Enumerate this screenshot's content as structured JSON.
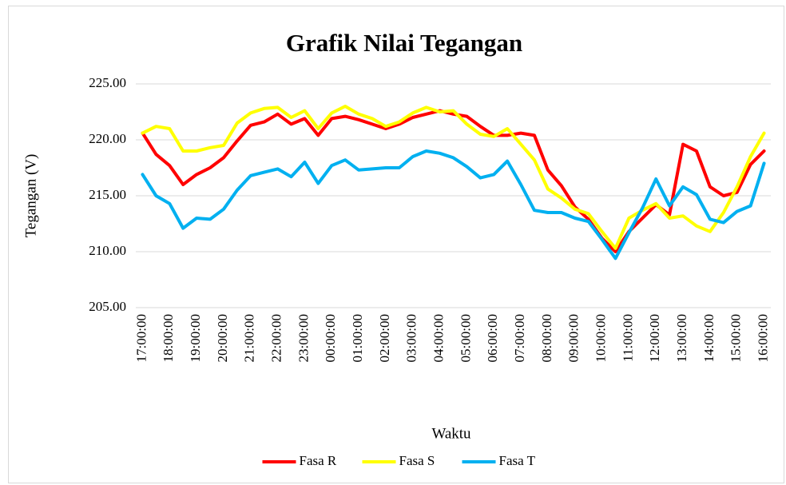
{
  "chart_data": {
    "type": "line",
    "title": "Grafik Nilai Tegangan",
    "x_label": "Waktu",
    "y_label": "Tegangan (V)",
    "categories": [
      "17:00:00",
      null,
      "18:00:00",
      null,
      "19:00:00",
      null,
      "20:00:00",
      null,
      "21:00:00",
      null,
      "22:00:00",
      null,
      "23:00:00",
      null,
      "00:00:00",
      null,
      "01:00:00",
      null,
      "02:00:00",
      null,
      "03:00:00",
      null,
      "04:00:00",
      null,
      "05:00:00",
      null,
      "06:00:00",
      null,
      "07:00:00",
      null,
      "08:00:00",
      null,
      "09:00:00",
      null,
      "10:00:00",
      null,
      "11:00:00",
      null,
      "12:00:00",
      null,
      "13:00:00",
      null,
      "14:00:00",
      null,
      "15:00:00",
      null,
      "16:00:00"
    ],
    "series": [
      {
        "name": "Fasa R",
        "color": "#ff0000",
        "values": [
          220.6,
          218.7,
          217.7,
          216.0,
          216.9,
          217.5,
          218.4,
          219.9,
          221.3,
          221.6,
          222.3,
          221.4,
          221.9,
          220.4,
          221.9,
          222.1,
          221.8,
          221.4,
          221.0,
          221.4,
          222.0,
          222.3,
          222.6,
          222.3,
          222.1,
          221.2,
          220.4,
          220.4,
          220.6,
          220.4,
          217.3,
          215.9,
          214.0,
          212.9,
          211.2,
          210.0,
          211.8,
          213.0,
          214.2,
          213.3,
          219.6,
          219.0,
          215.8,
          215.0,
          215.3,
          217.8,
          219.0
        ]
      },
      {
        "name": "Fasa S",
        "color": "#ffff00",
        "values": [
          220.6,
          221.2,
          221.0,
          219.0,
          219.0,
          219.3,
          219.5,
          221.5,
          222.4,
          222.8,
          222.9,
          222.0,
          222.6,
          221.0,
          222.4,
          223.0,
          222.3,
          221.9,
          221.2,
          221.6,
          222.4,
          222.9,
          222.5,
          222.6,
          221.4,
          220.5,
          220.3,
          221.0,
          219.6,
          218.2,
          215.6,
          214.8,
          213.8,
          213.4,
          211.8,
          210.3,
          213.0,
          213.7,
          214.3,
          213.0,
          213.2,
          212.3,
          211.8,
          213.5,
          215.8,
          218.5,
          220.6
        ]
      },
      {
        "name": "Fasa T",
        "color": "#00b0f0",
        "values": [
          216.9,
          215.0,
          214.3,
          212.1,
          213.0,
          212.9,
          213.8,
          215.5,
          216.8,
          217.1,
          217.4,
          216.7,
          218.0,
          216.1,
          217.7,
          218.2,
          217.3,
          217.4,
          217.5,
          217.5,
          218.5,
          219.0,
          218.8,
          218.4,
          217.6,
          216.6,
          216.9,
          218.1,
          216.0,
          213.7,
          213.5,
          213.5,
          213.0,
          212.7,
          211.1,
          209.4,
          211.7,
          213.9,
          216.5,
          214.1,
          215.8,
          215.1,
          212.9,
          212.6,
          213.6,
          214.1,
          217.9
        ]
      }
    ],
    "ylim": [
      205,
      225
    ],
    "yticks": [
      {
        "value": 205,
        "label": "205.00"
      },
      {
        "value": 210,
        "label": "210.00"
      },
      {
        "value": 215,
        "label": "215.00"
      },
      {
        "value": 220,
        "label": "220.00"
      },
      {
        "value": 225,
        "label": "225.00"
      }
    ],
    "grid": true,
    "legend": "bottom"
  }
}
